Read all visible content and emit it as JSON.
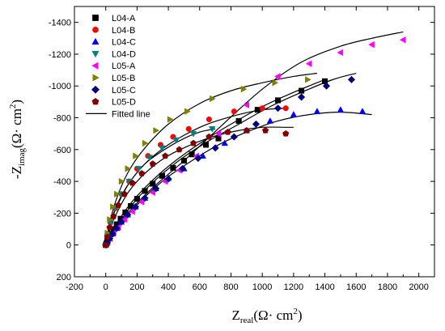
{
  "chart_data": {
    "type": "scatter",
    "title": "",
    "xlabel": {
      "main": "Z",
      "sub": "real",
      "rest": "(Ω· cm",
      "sup": "2",
      "end": ")"
    },
    "ylabel": {
      "main": "-Z",
      "sub": "imag",
      "rest": "(Ω· cm",
      "sup": "2",
      "end": ")"
    },
    "xlim": [
      -200,
      2100
    ],
    "ylim": [
      -1500,
      200
    ],
    "y_reversed": true,
    "x_ticks": [
      -200,
      0,
      200,
      400,
      600,
      800,
      1000,
      1200,
      1400,
      1600,
      1800,
      2000
    ],
    "y_ticks": [
      200,
      0,
      -200,
      -400,
      -600,
      -800,
      -1000,
      -1200,
      -1400
    ],
    "grid": false,
    "legend_position": "top-left",
    "series": [
      {
        "name": "L04-A",
        "marker": "square",
        "color": "#000000",
        "x": [
          0,
          5,
          10,
          20,
          35,
          50,
          70,
          95,
          125,
          160,
          200,
          250,
          300,
          360,
          430,
          500,
          550,
          640,
          720,
          850,
          970,
          1100,
          1250,
          1400
        ],
        "y": [
          0,
          -10,
          -25,
          -45,
          -70,
          -100,
          -130,
          -165,
          -205,
          -245,
          -290,
          -340,
          -385,
          -435,
          -485,
          -530,
          -570,
          -630,
          -670,
          -780,
          -850,
          -910,
          -970,
          -1030
        ]
      },
      {
        "name": "L04-B",
        "marker": "circle",
        "color": "#ff0000",
        "x": [
          0,
          10,
          30,
          60,
          100,
          150,
          200,
          270,
          350,
          430,
          530,
          660,
          820,
          1000,
          1150
        ],
        "y": [
          0,
          -60,
          -140,
          -230,
          -320,
          -400,
          -480,
          -560,
          -630,
          -680,
          -730,
          -790,
          -840,
          -860,
          -860
        ]
      },
      {
        "name": "L04-C",
        "marker": "triangle-up",
        "color": "#0000ff",
        "x": [
          0,
          10,
          25,
          45,
          70,
          100,
          140,
          190,
          250,
          320,
          400,
          500,
          620,
          760,
          900,
          1050,
          1200,
          1350,
          1500,
          1640
        ],
        "y": [
          0,
          -15,
          -40,
          -70,
          -105,
          -145,
          -190,
          -240,
          -295,
          -355,
          -420,
          -480,
          -560,
          -640,
          -720,
          -780,
          -820,
          -840,
          -850,
          -840
        ]
      },
      {
        "name": "L04-D",
        "marker": "triangle-down",
        "color": "#008080",
        "x": [
          0,
          10,
          30,
          60,
          100,
          150,
          210,
          280,
          360,
          450,
          560,
          680
        ],
        "y": [
          0,
          -55,
          -140,
          -230,
          -320,
          -400,
          -480,
          -550,
          -610,
          -660,
          -700,
          -730
        ]
      },
      {
        "name": "L05-A",
        "marker": "triangle-left",
        "color": "#ff00ff",
        "x": [
          0,
          10,
          25,
          50,
          80,
          120,
          170,
          230,
          300,
          380,
          470,
          580,
          720,
          900,
          1100,
          1300,
          1500,
          1700,
          1900
        ],
        "y": [
          0,
          -15,
          -40,
          -75,
          -110,
          -160,
          -210,
          -270,
          -330,
          -400,
          -470,
          -560,
          -700,
          -880,
          -1060,
          -1140,
          -1210,
          -1260,
          -1290
        ]
      },
      {
        "name": "L05-B",
        "marker": "triangle-right",
        "color": "#808000",
        "x": [
          0,
          10,
          25,
          45,
          70,
          100,
          140,
          190,
          250,
          320,
          410,
          520,
          680,
          880,
          1080,
          1290
        ],
        "y": [
          0,
          -75,
          -160,
          -240,
          -320,
          -400,
          -480,
          -560,
          -640,
          -720,
          -790,
          -840,
          -920,
          -980,
          -1020,
          -1040
        ]
      },
      {
        "name": "L05-C",
        "marker": "diamond",
        "color": "#000080",
        "x": [
          0,
          10,
          25,
          45,
          70,
          100,
          140,
          190,
          250,
          320,
          400,
          490,
          590,
          700,
          820,
          960,
          1100,
          1250,
          1410,
          1570
        ],
        "y": [
          0,
          -15,
          -40,
          -70,
          -105,
          -145,
          -190,
          -240,
          -295,
          -355,
          -415,
          -480,
          -545,
          -610,
          -680,
          -760,
          -860,
          -930,
          -1000,
          -1040
        ]
      },
      {
        "name": "L05-D",
        "marker": "pentagon",
        "color": "#800000",
        "x": [
          0,
          10,
          25,
          50,
          80,
          120,
          170,
          230,
          300,
          380,
          470,
          560,
          660,
          780,
          900,
          1020,
          1150
        ],
        "y": [
          0,
          -50,
          -110,
          -180,
          -250,
          -320,
          -390,
          -450,
          -510,
          -560,
          -600,
          -640,
          -680,
          -710,
          -720,
          -720,
          -700
        ]
      }
    ],
    "fitted_series": [
      {
        "label_ref": "L04-A",
        "x": [
          0,
          30,
          80,
          150,
          250,
          370,
          500,
          650,
          800,
          1000,
          1200,
          1400
        ],
        "y": [
          0,
          -60,
          -150,
          -250,
          -360,
          -470,
          -570,
          -670,
          -760,
          -870,
          -960,
          -1040
        ]
      },
      {
        "label_ref": "L04-B",
        "x": [
          0,
          30,
          80,
          150,
          250,
          370,
          500,
          650,
          850,
          1000,
          1150
        ],
        "y": [
          0,
          -140,
          -260,
          -390,
          -510,
          -610,
          -690,
          -760,
          -820,
          -850,
          -860
        ]
      },
      {
        "label_ref": "L04-C",
        "x": [
          0,
          40,
          100,
          180,
          280,
          400,
          550,
          720,
          900,
          1100,
          1300,
          1500,
          1700
        ],
        "y": [
          0,
          -60,
          -140,
          -230,
          -330,
          -430,
          -530,
          -630,
          -710,
          -780,
          -820,
          -835,
          -820
        ]
      },
      {
        "label_ref": "L04-D",
        "x": [
          0,
          30,
          80,
          150,
          250,
          360,
          480,
          600,
          700
        ],
        "y": [
          0,
          -140,
          -270,
          -390,
          -510,
          -590,
          -660,
          -710,
          -730
        ]
      },
      {
        "label_ref": "L05-A",
        "x": [
          0,
          50,
          150,
          300,
          500,
          750,
          1000,
          1250,
          1500,
          1700,
          1900
        ],
        "y": [
          0,
          -80,
          -210,
          -360,
          -530,
          -760,
          -980,
          -1150,
          -1250,
          -1300,
          -1340
        ]
      },
      {
        "label_ref": "L05-B",
        "x": [
          0,
          30,
          80,
          150,
          250,
          400,
          600,
          800,
          1000,
          1200,
          1350
        ],
        "y": [
          0,
          -160,
          -320,
          -470,
          -610,
          -760,
          -890,
          -970,
          -1020,
          -1060,
          -1080
        ]
      },
      {
        "label_ref": "L05-C",
        "x": [
          0,
          40,
          100,
          200,
          330,
          480,
          650,
          850,
          1050,
          1250,
          1450,
          1600
        ],
        "y": [
          0,
          -70,
          -160,
          -290,
          -420,
          -540,
          -650,
          -760,
          -870,
          -960,
          -1040,
          -1080
        ]
      },
      {
        "label_ref": "L05-D",
        "x": [
          0,
          30,
          80,
          150,
          250,
          380,
          520,
          680,
          850,
          1000,
          1150,
          1200
        ],
        "y": [
          0,
          -110,
          -220,
          -340,
          -450,
          -550,
          -620,
          -680,
          -720,
          -740,
          -740,
          -740
        ]
      }
    ],
    "legend_fitted_label": "Fitted line"
  }
}
